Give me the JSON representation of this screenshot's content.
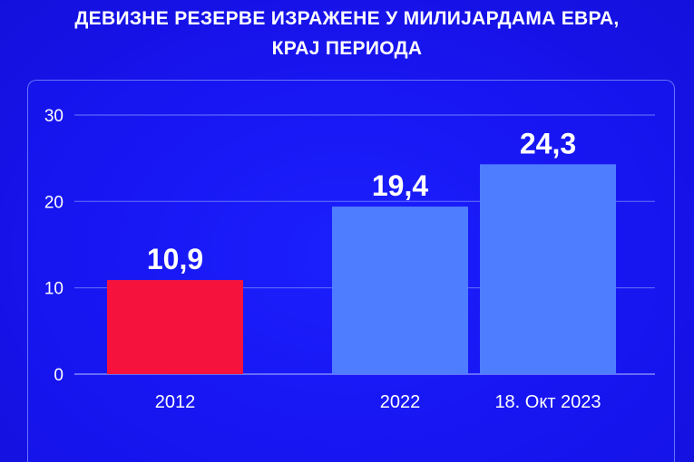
{
  "title": {
    "line1": "ДЕВИЗНЕ РЕЗЕРВЕ ИЗРАЖЕНЕ У МИЛИЈАРДАМА ЕВРА,",
    "line2": "КРАЈ ПЕРИОДА"
  },
  "colors": {
    "background": "#1a17f0",
    "bar_highlight": "#f5133e",
    "bar_default": "#4f7dff",
    "text": "#ffffff"
  },
  "chart_data": {
    "type": "bar",
    "title": "ДЕВИЗНЕ РЕЗЕРВЕ ИЗРАЖЕНЕ У МИЛИЈАРДАМА ЕВРА, КРАЈ ПЕРИОДА",
    "categories": [
      "2012",
      "2022",
      "18. Окт 2023"
    ],
    "values": [
      10.9,
      19.4,
      24.3
    ],
    "value_labels": [
      "10,9",
      "19,4",
      "24,3"
    ],
    "bar_colors": [
      "#f5133e",
      "#4f7dff",
      "#4f7dff"
    ],
    "ylim": [
      0,
      30
    ],
    "yticks": [
      0,
      10,
      20,
      30
    ],
    "grid": true,
    "xlabel": "",
    "ylabel": ""
  }
}
